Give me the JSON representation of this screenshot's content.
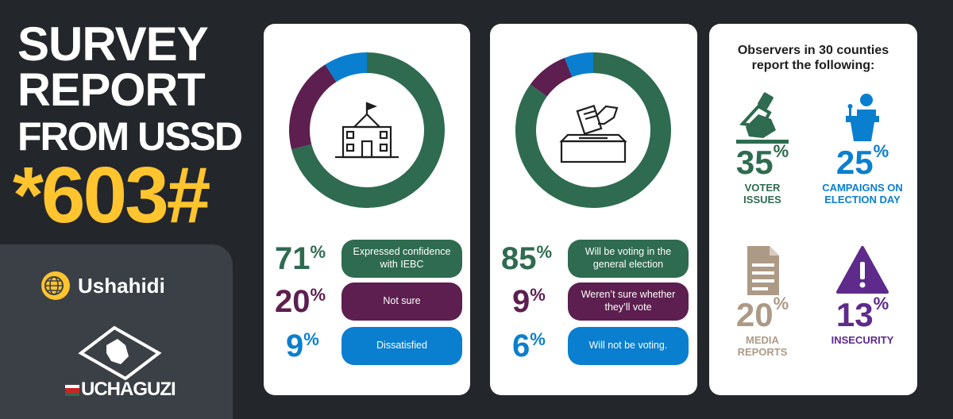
{
  "header": {
    "title_lines": [
      "SURVEY",
      "REPORT",
      "FROM USSD"
    ],
    "code": "*603#"
  },
  "logos": {
    "ushahidi": "Ushahidi",
    "uchaguzi": "UCHAGUZI"
  },
  "colors": {
    "green": "#2e6b50",
    "purple": "#5c1f4f",
    "blue": "#0a7fcf",
    "tan": "#ad9a86",
    "violet": "#5e2a8c",
    "yellow": "#ffc42e"
  },
  "chart_data": [
    {
      "type": "pie",
      "icon": "school-building-icon",
      "slices": [
        {
          "label": "Expressed confidence with IEBC",
          "value": 71,
          "display": "71",
          "color": "#2e6b50"
        },
        {
          "label": "Not sure",
          "value": 20,
          "display": "20",
          "color": "#5c1f4f"
        },
        {
          "label": "Dissatisfied",
          "value": 9,
          "display": "9",
          "color": "#0a7fcf"
        }
      ]
    },
    {
      "type": "pie",
      "icon": "ballot-box-icon",
      "slices": [
        {
          "label": "Will be voting in the general election",
          "value": 85,
          "display": "85",
          "color": "#2e6b50"
        },
        {
          "label": "Weren’t sure whether they’ll vote",
          "value": 9,
          "display": "9",
          "color": "#5c1f4f"
        },
        {
          "label": "Will not be voting.",
          "value": 6,
          "display": "6",
          "color": "#0a7fcf"
        }
      ]
    }
  ],
  "observers": {
    "title": "Observers in 30 counties report the following:",
    "metrics": [
      {
        "value": "35",
        "label": "VOTER ISSUES",
        "color": "#2e6b50",
        "icon": "voting-hand-icon"
      },
      {
        "value": "25",
        "label": "CAMPAIGNS ON ELECTION DAY",
        "color": "#0a7fcf",
        "icon": "podium-speaker-icon"
      },
      {
        "value": "20",
        "label": "MEDIA REPORTS",
        "color": "#ad9a86",
        "icon": "document-icon"
      },
      {
        "value": "13",
        "label": "INSECURITY",
        "color": "#5e2a8c",
        "icon": "warning-triangle-icon"
      }
    ]
  }
}
